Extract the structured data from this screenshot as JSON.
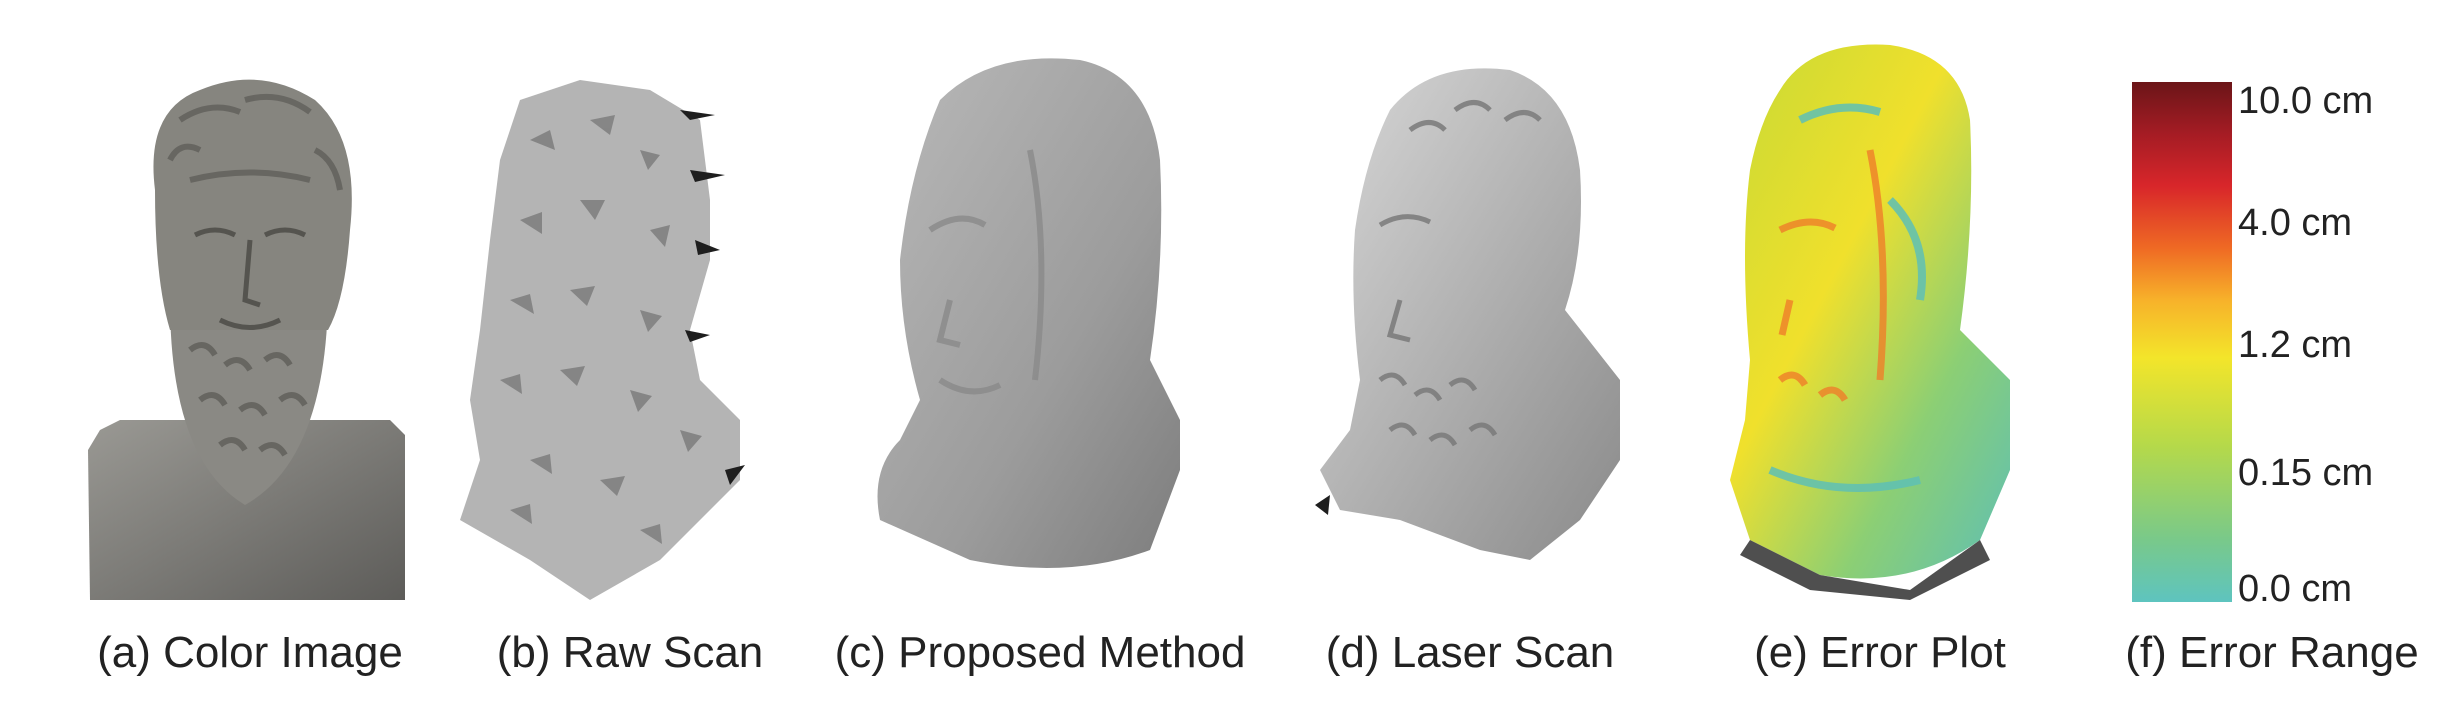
{
  "figure": {
    "captions": {
      "a": "(a) Color Image",
      "b": "(b) Raw Scan",
      "c": "(c) Proposed Method",
      "d": "(d) Laser Scan",
      "e": "(e) Error Plot",
      "f": "(f) Error Range"
    },
    "colorbar": {
      "ticks": [
        "10.0 cm",
        "4.0 cm",
        "1.2 cm",
        "0.15 cm",
        "0.0 cm"
      ],
      "colors": [
        "#5ec4bf",
        "#79c98a",
        "#b5d94a",
        "#f3e52a",
        "#f7b22a",
        "#ef6a24",
        "#d8262a",
        "#6b1518"
      ]
    }
  }
}
